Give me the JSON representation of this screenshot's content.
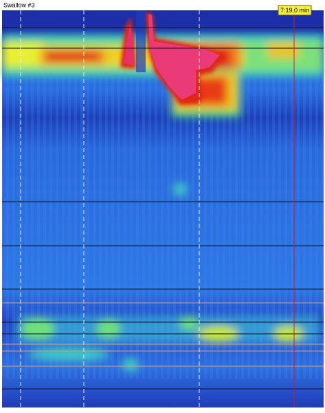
{
  "header": {
    "title": "Swallow #3"
  },
  "time_marker": {
    "label": "7:19.0 min"
  }
}
